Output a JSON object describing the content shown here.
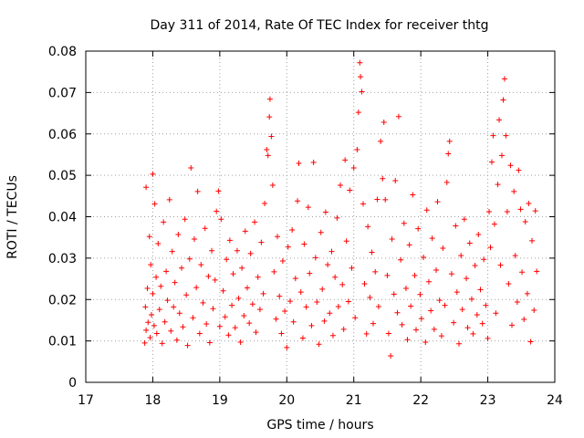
{
  "chart_data": {
    "type": "scatter",
    "title": "Day 311 of 2014, Rate Of TEC Index for receiver thtg",
    "xlabel": "GPS time / hours",
    "ylabel": "ROTI / TECUs",
    "xlim": [
      17,
      24
    ],
    "ylim": [
      0,
      0.08
    ],
    "xticks": [
      17,
      18,
      19,
      20,
      21,
      22,
      23,
      24
    ],
    "yticks": [
      0,
      0.01,
      0.02,
      0.03,
      0.04,
      0.05,
      0.06,
      0.07,
      0.08
    ],
    "ytick_labels": [
      "0",
      "0.01",
      "0.02",
      "0.03",
      "0.04",
      "0.05",
      "0.06",
      "0.07",
      "0.08"
    ],
    "grid": true,
    "marker": "+",
    "colors": {
      "series": "#ff0000",
      "grid": "#a0a0a0",
      "axis": "#000000"
    },
    "series": [
      {
        "name": "ROTI",
        "points": [
          [
            17.88,
            0.0095
          ],
          [
            17.89,
            0.0182
          ],
          [
            17.9,
            0.0471
          ],
          [
            17.9,
            0.0126
          ],
          [
            17.92,
            0.0227
          ],
          [
            17.93,
            0.0145
          ],
          [
            17.95,
            0.0352
          ],
          [
            17.96,
            0.0108
          ],
          [
            17.97,
            0.0284
          ],
          [
            17.98,
            0.0163
          ],
          [
            18.0,
            0.0503
          ],
          [
            18.0,
            0.0214
          ],
          [
            18.02,
            0.0137
          ],
          [
            18.03,
            0.0431
          ],
          [
            18.05,
            0.0254
          ],
          [
            18.06,
            0.0118
          ],
          [
            18.08,
            0.0335
          ],
          [
            18.1,
            0.0176
          ],
          [
            18.12,
            0.0232
          ],
          [
            18.14,
            0.0094
          ],
          [
            18.16,
            0.0387
          ],
          [
            18.18,
            0.0146
          ],
          [
            18.2,
            0.0268
          ],
          [
            18.22,
            0.0198
          ],
          [
            18.25,
            0.0441
          ],
          [
            18.27,
            0.0124
          ],
          [
            18.29,
            0.0316
          ],
          [
            18.31,
            0.0182
          ],
          [
            18.33,
            0.0241
          ],
          [
            18.36,
            0.0102
          ],
          [
            18.38,
            0.0357
          ],
          [
            18.4,
            0.0167
          ],
          [
            18.43,
            0.0276
          ],
          [
            18.45,
            0.0134
          ],
          [
            18.48,
            0.0394
          ],
          [
            18.5,
            0.0211
          ],
          [
            18.52,
            0.0089
          ],
          [
            18.55,
            0.0298
          ],
          [
            18.57,
            0.0518
          ],
          [
            18.6,
            0.0156
          ],
          [
            18.62,
            0.0346
          ],
          [
            18.65,
            0.0229
          ],
          [
            18.67,
            0.0461
          ],
          [
            18.7,
            0.0118
          ],
          [
            18.72,
            0.0284
          ],
          [
            18.75,
            0.0192
          ],
          [
            18.78,
            0.0372
          ],
          [
            18.8,
            0.0141
          ],
          [
            18.83,
            0.0256
          ],
          [
            18.85,
            0.0096
          ],
          [
            18.88,
            0.0318
          ],
          [
            18.9,
            0.0178
          ],
          [
            18.93,
            0.0247
          ],
          [
            18.95,
            0.0413
          ],
          [
            18.98,
            0.0462
          ],
          [
            19.0,
            0.0135
          ],
          [
            19.02,
            0.0394
          ],
          [
            19.05,
            0.0221
          ],
          [
            19.08,
            0.0158
          ],
          [
            19.1,
            0.0297
          ],
          [
            19.13,
            0.0114
          ],
          [
            19.15,
            0.0343
          ],
          [
            19.18,
            0.0186
          ],
          [
            19.2,
            0.0262
          ],
          [
            19.23,
            0.0132
          ],
          [
            19.26,
            0.0318
          ],
          [
            19.28,
            0.0203
          ],
          [
            19.31,
            0.0097
          ],
          [
            19.33,
            0.0276
          ],
          [
            19.36,
            0.0161
          ],
          [
            19.38,
            0.0365
          ],
          [
            19.41,
            0.0228
          ],
          [
            19.44,
            0.0143
          ],
          [
            19.46,
            0.0311
          ],
          [
            19.49,
            0.0189
          ],
          [
            19.52,
            0.0387
          ],
          [
            19.54,
            0.0121
          ],
          [
            19.57,
            0.0254
          ],
          [
            19.6,
            0.0176
          ],
          [
            19.62,
            0.0338
          ],
          [
            19.65,
            0.0214
          ],
          [
            19.67,
            0.0432
          ],
          [
            19.7,
            0.0562
          ],
          [
            19.72,
            0.0548
          ],
          [
            19.74,
            0.0641
          ],
          [
            19.75,
            0.0684
          ],
          [
            19.77,
            0.0594
          ],
          [
            19.79,
            0.0476
          ],
          [
            19.81,
            0.0267
          ],
          [
            19.84,
            0.0153
          ],
          [
            19.86,
            0.0352
          ],
          [
            19.89,
            0.0208
          ],
          [
            19.92,
            0.0118
          ],
          [
            19.94,
            0.0293
          ],
          [
            19.97,
            0.0172
          ],
          [
            20.0,
            0.0084
          ],
          [
            20.02,
            0.0327
          ],
          [
            20.05,
            0.0196
          ],
          [
            20.08,
            0.0368
          ],
          [
            20.1,
            0.0146
          ],
          [
            20.13,
            0.0251
          ],
          [
            20.16,
            0.0438
          ],
          [
            20.18,
            0.0529
          ],
          [
            20.21,
            0.0218
          ],
          [
            20.24,
            0.0107
          ],
          [
            20.26,
            0.0334
          ],
          [
            20.29,
            0.0182
          ],
          [
            20.32,
            0.0423
          ],
          [
            20.34,
            0.0263
          ],
          [
            20.37,
            0.0137
          ],
          [
            20.4,
            0.0531
          ],
          [
            20.43,
            0.0301
          ],
          [
            20.45,
            0.0194
          ],
          [
            20.48,
            0.0092
          ],
          [
            20.51,
            0.0362
          ],
          [
            20.53,
            0.0225
          ],
          [
            20.56,
            0.0148
          ],
          [
            20.58,
            0.0411
          ],
          [
            20.61,
            0.0284
          ],
          [
            20.64,
            0.0167
          ],
          [
            20.67,
            0.0316
          ],
          [
            20.69,
            0.0113
          ],
          [
            20.72,
            0.0254
          ],
          [
            20.75,
            0.0397
          ],
          [
            20.77,
            0.0183
          ],
          [
            20.8,
            0.0476
          ],
          [
            20.83,
            0.0236
          ],
          [
            20.85,
            0.0128
          ],
          [
            20.87,
            0.0537
          ],
          [
            20.89,
            0.0341
          ],
          [
            20.92,
            0.0195
          ],
          [
            20.94,
            0.0464
          ],
          [
            20.97,
            0.0276
          ],
          [
            21.0,
            0.0518
          ],
          [
            21.02,
            0.0156
          ],
          [
            21.05,
            0.0562
          ],
          [
            21.07,
            0.0652
          ],
          [
            21.09,
            0.0772
          ],
          [
            21.1,
            0.0738
          ],
          [
            21.12,
            0.0702
          ],
          [
            21.14,
            0.0431
          ],
          [
            21.16,
            0.0238
          ],
          [
            21.19,
            0.0117
          ],
          [
            21.21,
            0.0376
          ],
          [
            21.24,
            0.0205
          ],
          [
            21.27,
            0.0314
          ],
          [
            21.29,
            0.0142
          ],
          [
            21.32,
            0.0267
          ],
          [
            21.35,
            0.0442
          ],
          [
            21.37,
            0.0183
          ],
          [
            21.4,
            0.0582
          ],
          [
            21.43,
            0.0492
          ],
          [
            21.45,
            0.0628
          ],
          [
            21.47,
            0.0441
          ],
          [
            21.5,
            0.0258
          ],
          [
            21.52,
            0.0118
          ],
          [
            21.55,
            0.0064
          ],
          [
            21.57,
            0.0346
          ],
          [
            21.6,
            0.0213
          ],
          [
            21.62,
            0.0487
          ],
          [
            21.65,
            0.0168
          ],
          [
            21.67,
            0.0642
          ],
          [
            21.7,
            0.0296
          ],
          [
            21.72,
            0.0139
          ],
          [
            21.75,
            0.0384
          ],
          [
            21.78,
            0.0227
          ],
          [
            21.8,
            0.0103
          ],
          [
            21.83,
            0.0332
          ],
          [
            21.85,
            0.0184
          ],
          [
            21.88,
            0.0453
          ],
          [
            21.91,
            0.0258
          ],
          [
            21.93,
            0.0127
          ],
          [
            21.96,
            0.0371
          ],
          [
            21.99,
            0.0212
          ],
          [
            22.01,
            0.0154
          ],
          [
            22.04,
            0.0302
          ],
          [
            22.07,
            0.0097
          ],
          [
            22.09,
            0.0416
          ],
          [
            22.12,
            0.0243
          ],
          [
            22.15,
            0.0173
          ],
          [
            22.17,
            0.0348
          ],
          [
            22.2,
            0.0128
          ],
          [
            22.23,
            0.0271
          ],
          [
            22.25,
            0.0436
          ],
          [
            22.28,
            0.0198
          ],
          [
            22.31,
            0.0112
          ],
          [
            22.33,
            0.0324
          ],
          [
            22.36,
            0.0186
          ],
          [
            22.39,
            0.0483
          ],
          [
            22.41,
            0.0552
          ],
          [
            22.43,
            0.0582
          ],
          [
            22.46,
            0.0262
          ],
          [
            22.49,
            0.0144
          ],
          [
            22.52,
            0.0378
          ],
          [
            22.54,
            0.0218
          ],
          [
            22.57,
            0.0093
          ],
          [
            22.6,
            0.0306
          ],
          [
            22.62,
            0.0176
          ],
          [
            22.65,
            0.0394
          ],
          [
            22.68,
            0.0251
          ],
          [
            22.7,
            0.0132
          ],
          [
            22.73,
            0.0336
          ],
          [
            22.76,
            0.0201
          ],
          [
            22.78,
            0.0117
          ],
          [
            22.81,
            0.0282
          ],
          [
            22.84,
            0.0163
          ],
          [
            22.86,
            0.0357
          ],
          [
            22.89,
            0.0224
          ],
          [
            22.92,
            0.0142
          ],
          [
            22.94,
            0.0297
          ],
          [
            22.97,
            0.0186
          ],
          [
            23.0,
            0.0106
          ],
          [
            23.02,
            0.0412
          ],
          [
            23.04,
            0.0326
          ],
          [
            23.06,
            0.0532
          ],
          [
            23.08,
            0.0596
          ],
          [
            23.1,
            0.0382
          ],
          [
            23.12,
            0.0167
          ],
          [
            23.15,
            0.0478
          ],
          [
            23.17,
            0.0634
          ],
          [
            23.19,
            0.0283
          ],
          [
            23.21,
            0.0548
          ],
          [
            23.23,
            0.0682
          ],
          [
            23.25,
            0.0733
          ],
          [
            23.27,
            0.0596
          ],
          [
            23.29,
            0.0412
          ],
          [
            23.31,
            0.0238
          ],
          [
            23.34,
            0.0524
          ],
          [
            23.36,
            0.0138
          ],
          [
            23.39,
            0.0461
          ],
          [
            23.41,
            0.0306
          ],
          [
            23.44,
            0.0194
          ],
          [
            23.46,
            0.0512
          ],
          [
            23.49,
            0.0418
          ],
          [
            23.51,
            0.0266
          ],
          [
            23.54,
            0.0152
          ],
          [
            23.56,
            0.0388
          ],
          [
            23.59,
            0.0214
          ],
          [
            23.61,
            0.0432
          ],
          [
            23.64,
            0.0098
          ],
          [
            23.66,
            0.0342
          ],
          [
            23.69,
            0.0174
          ],
          [
            23.71,
            0.0414
          ],
          [
            23.73,
            0.0268
          ]
        ]
      }
    ]
  }
}
